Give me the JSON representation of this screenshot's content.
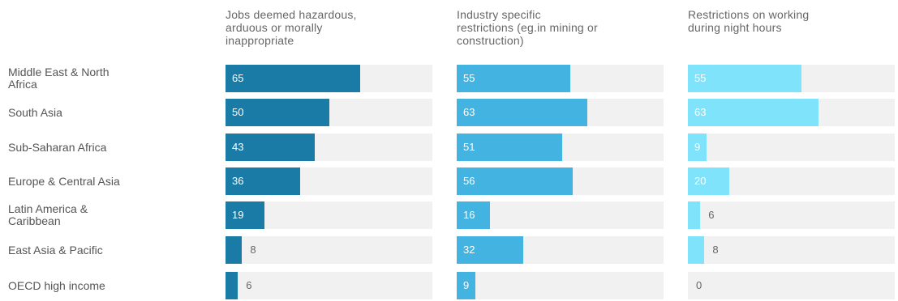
{
  "chart_data": {
    "type": "bar",
    "orientation": "horizontal",
    "layout": "small-multiples",
    "categories": [
      "Middle East & North\nAfrica",
      "South Asia",
      "Sub-Saharan Africa",
      "Europe & Central Asia",
      "Latin America &\nCaribbean",
      "East Asia & Pacific",
      "OECD high income"
    ],
    "xlim": [
      0,
      100
    ],
    "grid": false,
    "series": [
      {
        "name": "Jobs deemed hazardous,\narduous or morally\ninappropriate",
        "color": "#1a7ca6",
        "values": [
          65,
          50,
          43,
          36,
          19,
          8,
          6
        ]
      },
      {
        "name": "Industry specific\nrestrictions (eg.in mining or\nconstruction)",
        "color": "#43b4e2",
        "values": [
          55,
          63,
          51,
          56,
          16,
          32,
          9
        ]
      },
      {
        "name": "Restrictions on working\nduring night hours",
        "color": "#7fe3fb",
        "values": [
          55,
          63,
          9,
          20,
          6,
          8,
          0
        ]
      }
    ]
  }
}
